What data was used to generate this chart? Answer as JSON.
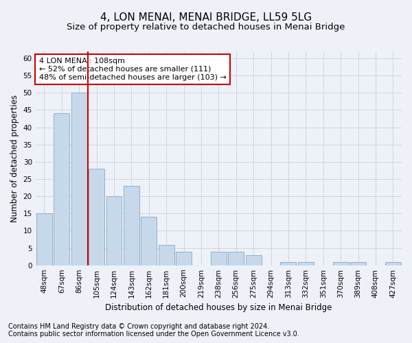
{
  "title": "4, LON MENAI, MENAI BRIDGE, LL59 5LG",
  "subtitle": "Size of property relative to detached houses in Menai Bridge",
  "xlabel": "Distribution of detached houses by size in Menai Bridge",
  "ylabel": "Number of detached properties",
  "categories": [
    "48sqm",
    "67sqm",
    "86sqm",
    "105sqm",
    "124sqm",
    "143sqm",
    "162sqm",
    "181sqm",
    "200sqm",
    "219sqm",
    "238sqm",
    "256sqm",
    "275sqm",
    "294sqm",
    "313sqm",
    "332sqm",
    "351sqm",
    "370sqm",
    "389sqm",
    "408sqm",
    "427sqm"
  ],
  "values": [
    15,
    44,
    50,
    28,
    20,
    23,
    14,
    6,
    4,
    0,
    4,
    4,
    3,
    0,
    1,
    1,
    0,
    1,
    1,
    0,
    1
  ],
  "bar_color": "#c8d8eb",
  "bar_edge_color": "#7aaac8",
  "vline_color": "#cc0000",
  "annotation_text": "4 LON MENAI: 108sqm\n← 52% of detached houses are smaller (111)\n48% of semi-detached houses are larger (103) →",
  "annotation_box_color": "white",
  "annotation_box_edge": "#cc0000",
  "ylim": [
    0,
    62
  ],
  "yticks": [
    0,
    5,
    10,
    15,
    20,
    25,
    30,
    35,
    40,
    45,
    50,
    55,
    60
  ],
  "grid_color": "#c8d0de",
  "footer1": "Contains HM Land Registry data © Crown copyright and database right 2024.",
  "footer2": "Contains public sector information licensed under the Open Government Licence v3.0.",
  "background_color": "#eef2f8",
  "title_fontsize": 11,
  "subtitle_fontsize": 9.5,
  "axis_label_fontsize": 8.5,
  "tick_fontsize": 7.5,
  "annotation_fontsize": 8,
  "footer_fontsize": 7
}
